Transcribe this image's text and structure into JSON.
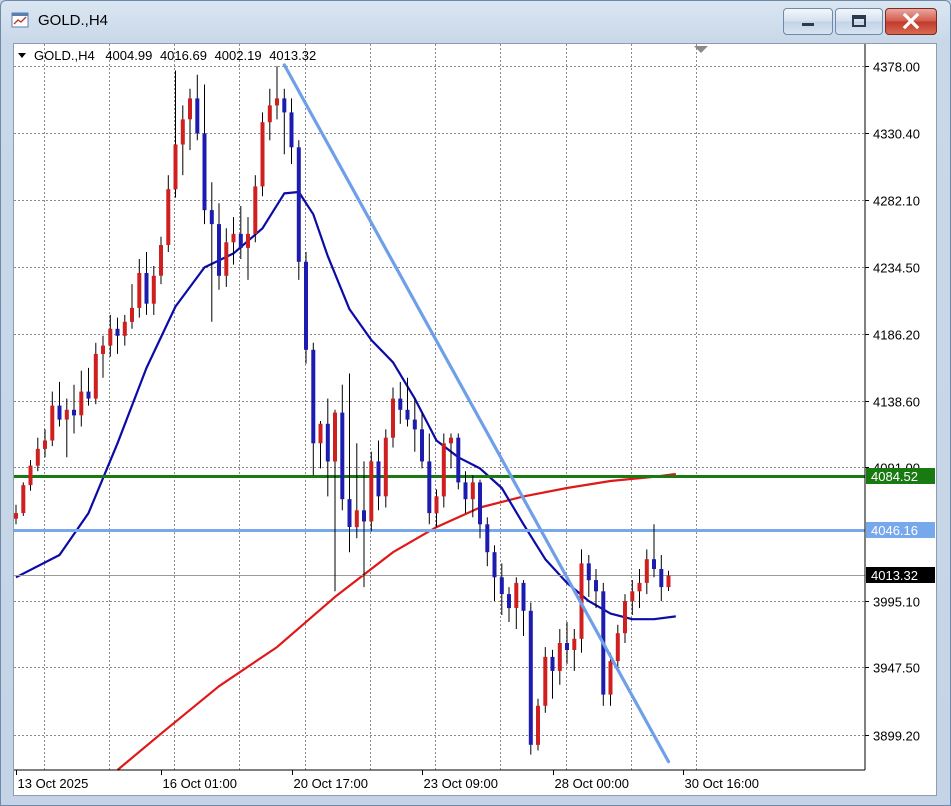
{
  "window": {
    "title": "GOLD.,H4",
    "icons": {
      "app": "chart-window-icon",
      "minimize": "minimize-icon",
      "maximize": "maximize-icon",
      "close": "close-icon"
    }
  },
  "header": {
    "collapse_icon": "triangle-down-icon",
    "symbol": "GOLD.,H4",
    "open": "4004.99",
    "high": "4016.69",
    "low": "4002.19",
    "close": "4013.32"
  },
  "colors": {
    "bull": "#d01f1f",
    "bear": "#1c1cb0",
    "ma_fast": "#0b0ba8",
    "ma_slow": "#e01818",
    "trendline": "#6f9fe8",
    "support_line": "#1a7a12",
    "resistance_line": "#78a8ec",
    "grid": "#8a8a8a"
  },
  "chart_data": {
    "type": "candlestick",
    "ylim": [
      3874,
      4394
    ],
    "y_ticks": [
      "4378.00",
      "4330.40",
      "4282.10",
      "4234.50",
      "4186.20",
      "4138.60",
      "4091.00",
      "3995.10",
      "3947.50",
      "3899.20"
    ],
    "x_ticks": [
      {
        "label": "13 Oct 2025",
        "index": 0
      },
      {
        "label": "16 Oct 01:00",
        "index": 20
      },
      {
        "label": "20 Oct 17:00",
        "index": 38
      },
      {
        "label": "23 Oct 09:00",
        "index": 56
      },
      {
        "label": "28 Oct 00:00",
        "index": 74
      },
      {
        "label": "30 Oct 16:00",
        "index": 92
      }
    ],
    "candles": [
      [
        4054,
        4064,
        4050,
        4058
      ],
      [
        4058,
        4080,
        4056,
        4078
      ],
      [
        4078,
        4096,
        4074,
        4092
      ],
      [
        4092,
        4112,
        4088,
        4104
      ],
      [
        4104,
        4118,
        4098,
        4110
      ],
      [
        4110,
        4145,
        4106,
        4135
      ],
      [
        4135,
        4152,
        4120,
        4125
      ],
      [
        4125,
        4140,
        4098,
        4132
      ],
      [
        4132,
        4150,
        4115,
        4128
      ],
      [
        4128,
        4160,
        4120,
        4145
      ],
      [
        4145,
        4162,
        4135,
        4140
      ],
      [
        4140,
        4180,
        4136,
        4172
      ],
      [
        4172,
        4185,
        4155,
        4178
      ],
      [
        4178,
        4200,
        4170,
        4190
      ],
      [
        4190,
        4198,
        4172,
        4185
      ],
      [
        4185,
        4200,
        4178,
        4195
      ],
      [
        4195,
        4222,
        4190,
        4205
      ],
      [
        4205,
        4240,
        4198,
        4230
      ],
      [
        4230,
        4245,
        4200,
        4208
      ],
      [
        4208,
        4235,
        4200,
        4228
      ],
      [
        4228,
        4256,
        4222,
        4250
      ],
      [
        4250,
        4300,
        4245,
        4290
      ],
      [
        4290,
        4375,
        4284,
        4322
      ],
      [
        4322,
        4350,
        4300,
        4340
      ],
      [
        4340,
        4362,
        4318,
        4355
      ],
      [
        4355,
        4372,
        4325,
        4330
      ],
      [
        4330,
        4365,
        4265,
        4275
      ],
      [
        4275,
        4295,
        4195,
        4265
      ],
      [
        4265,
        4280,
        4218,
        4228
      ],
      [
        4228,
        4262,
        4220,
        4252
      ],
      [
        4252,
        4270,
        4236,
        4258
      ],
      [
        4258,
        4278,
        4240,
        4248
      ],
      [
        4248,
        4270,
        4225,
        4258
      ],
      [
        4258,
        4300,
        4252,
        4292
      ],
      [
        4292,
        4345,
        4285,
        4338
      ],
      [
        4338,
        4362,
        4325,
        4350
      ],
      [
        4350,
        4378,
        4340,
        4355
      ],
      [
        4355,
        4362,
        4315,
        4345
      ],
      [
        4345,
        4355,
        4308,
        4320
      ],
      [
        4320,
        4325,
        4225,
        4238
      ],
      [
        4238,
        4245,
        4165,
        4175
      ],
      [
        4175,
        4180,
        4085,
        4108
      ],
      [
        4108,
        4124,
        4090,
        4122
      ],
      [
        4122,
        4140,
        4070,
        4095
      ],
      [
        4095,
        4132,
        4002,
        4130
      ],
      [
        4130,
        4150,
        4060,
        4068
      ],
      [
        4068,
        4158,
        4030,
        4048
      ],
      [
        4048,
        4108,
        4040,
        4060
      ],
      [
        4060,
        4095,
        4005,
        4052
      ],
      [
        4052,
        4102,
        4045,
        4095
      ],
      [
        4095,
        4110,
        4060,
        4070
      ],
      [
        4070,
        4118,
        4062,
        4112
      ],
      [
        4112,
        4148,
        4105,
        4140
      ],
      [
        4140,
        4152,
        4122,
        4132
      ],
      [
        4132,
        4155,
        4120,
        4125
      ],
      [
        4125,
        4140,
        4102,
        4118
      ],
      [
        4118,
        4130,
        4090,
        4095
      ],
      [
        4095,
        4115,
        4050,
        4058
      ],
      [
        4058,
        4075,
        4048,
        4070
      ],
      [
        4070,
        4115,
        4062,
        4108
      ],
      [
        4108,
        4115,
        4090,
        4112
      ],
      [
        4112,
        4115,
        4075,
        4080
      ],
      [
        4080,
        4088,
        4058,
        4068
      ],
      [
        4068,
        4085,
        4055,
        4080
      ],
      [
        4080,
        4082,
        4040,
        4050
      ],
      [
        4050,
        4055,
        4020,
        4030
      ],
      [
        4030,
        4035,
        3995,
        4012
      ],
      [
        4012,
        4022,
        3985,
        4000
      ],
      [
        4000,
        4005,
        3980,
        3990
      ],
      [
        3990,
        4012,
        3975,
        4008
      ],
      [
        4008,
        4010,
        3970,
        3988
      ],
      [
        3988,
        3994,
        3885,
        3892
      ],
      [
        3892,
        3925,
        3888,
        3920
      ],
      [
        3920,
        3962,
        3915,
        3955
      ],
      [
        3955,
        3960,
        3925,
        3945
      ],
      [
        3945,
        3975,
        3935,
        3965
      ],
      [
        3965,
        3980,
        3950,
        3960
      ],
      [
        3960,
        3975,
        3945,
        3968
      ],
      [
        3968,
        4032,
        3958,
        4022
      ],
      [
        4022,
        4028,
        3998,
        4010
      ],
      [
        4010,
        4018,
        3990,
        4002
      ],
      [
        4002,
        4008,
        3920,
        3928
      ],
      [
        3928,
        3958,
        3920,
        3952
      ],
      [
        3952,
        3978,
        3945,
        3972
      ],
      [
        3972,
        4000,
        3965,
        3995
      ],
      [
        3995,
        4010,
        3985,
        4002
      ],
      [
        4002,
        4018,
        3990,
        4008
      ],
      [
        4008,
        4032,
        4000,
        4025
      ],
      [
        4025,
        4050,
        4012,
        4018
      ],
      [
        4018,
        4028,
        3995,
        4005
      ],
      [
        4004.99,
        4016.69,
        4002.19,
        4013.32
      ]
    ],
    "ma_fast": [
      [
        0,
        4012
      ],
      [
        6,
        4028
      ],
      [
        10,
        4058
      ],
      [
        14,
        4108
      ],
      [
        18,
        4162
      ],
      [
        22,
        4206
      ],
      [
        26,
        4234
      ],
      [
        30,
        4244
      ],
      [
        34,
        4262
      ],
      [
        37,
        4287
      ],
      [
        39,
        4288
      ],
      [
        41,
        4272
      ],
      [
        43,
        4242
      ],
      [
        46,
        4204
      ],
      [
        49,
        4182
      ],
      [
        52,
        4166
      ],
      [
        55,
        4140
      ],
      [
        58,
        4110
      ],
      [
        61,
        4098
      ],
      [
        64,
        4090
      ],
      [
        67,
        4076
      ],
      [
        70,
        4050
      ],
      [
        73,
        4025
      ],
      [
        76,
        4008
      ],
      [
        79,
        3995
      ],
      [
        82,
        3986
      ],
      [
        85,
        3982
      ],
      [
        88,
        3982
      ],
      [
        91,
        3984
      ]
    ],
    "ma_slow": [
      [
        14,
        3874
      ],
      [
        20,
        3900
      ],
      [
        28,
        3934
      ],
      [
        36,
        3962
      ],
      [
        44,
        3998
      ],
      [
        52,
        4030
      ],
      [
        58,
        4048
      ],
      [
        64,
        4062
      ],
      [
        70,
        4070
      ],
      [
        76,
        4076
      ],
      [
        82,
        4081
      ],
      [
        88,
        4084
      ],
      [
        91,
        4086
      ]
    ],
    "trendline": [
      [
        37,
        4379
      ],
      [
        90,
        3880
      ]
    ],
    "horizontal_lines": [
      {
        "price": 4084.52,
        "label": "4084.52",
        "style": "support"
      },
      {
        "price": 4046.16,
        "label": "4046.16",
        "style": "resistance"
      },
      {
        "price": 4013.32,
        "label": "4013.32",
        "style": "current"
      }
    ]
  }
}
